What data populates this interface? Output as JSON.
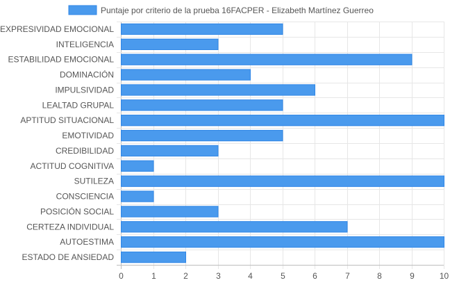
{
  "chart_data": {
    "type": "bar",
    "orientation": "horizontal",
    "categories": [
      "EXPRESIVIDAD EMOCIONAL",
      "INTELIGENCIA",
      "ESTABILIDAD EMOCIONAL",
      "DOMINACIÓN",
      "IMPULSIVIDAD",
      "LEALTAD GRUPAL",
      "APTITUD SITUACIONAL",
      "EMOTIVIDAD",
      "CREDIBILIDAD",
      "ACTITUD COGNITIVA",
      "SUTILEZA",
      "CONSCIENCIA",
      "POSICIÓN SOCIAL",
      "CERTEZA INDIVIDUAL",
      "AUTOESTIMA",
      "ESTADO DE ANSIEDAD"
    ],
    "series": [
      {
        "name": "Puntaje por criterio de la prueba 16FACPER - Elizabeth Martínez Guerreo",
        "values": [
          5,
          3,
          9,
          4,
          6,
          5,
          10,
          5,
          3,
          1,
          10,
          1,
          3,
          7,
          10,
          2
        ],
        "color": "#4a9aed",
        "border_color": "#2f86e6"
      }
    ],
    "xlim": [
      0,
      10
    ],
    "x_ticks": [
      "0",
      "1",
      "2",
      "3",
      "4",
      "5",
      "6",
      "7",
      "8",
      "9",
      "10"
    ],
    "grid": true,
    "legend_position": "top-center"
  }
}
